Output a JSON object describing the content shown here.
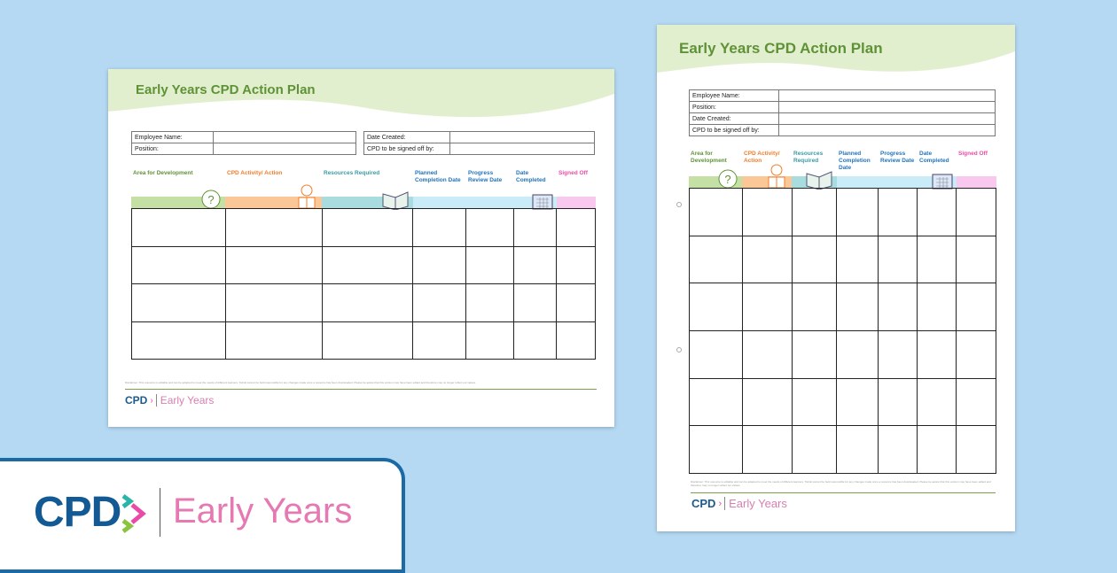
{
  "title": "Early Years CPD Action Plan",
  "info_left": [
    "Employee Name:",
    "Position:"
  ],
  "info_right": [
    "Date Created:",
    "CPD to be signed off by:"
  ],
  "info_portrait": [
    "Employee Name:",
    "Position:",
    "Date Created:",
    "CPD to be signed off by:"
  ],
  "columns": [
    {
      "label": "Area for Development",
      "color": "#5f9237",
      "band": "#c5e0a5",
      "icon": "question-bubble-icon"
    },
    {
      "label": "CPD Activity/ Action",
      "color": "#f07c2a",
      "band": "#fbc796",
      "icon": "person-reading-icon"
    },
    {
      "label": "Resources Required",
      "color": "#3a9aa6",
      "band": "#a8dcdf",
      "icon": "open-book-icon"
    },
    {
      "label": "Planned Completion Date",
      "color": "#1f74bd",
      "band": "#c9ecf8",
      "icon": ""
    },
    {
      "label": "Progress Review Date",
      "color": "#1f74bd",
      "band": "#c9ecf8",
      "icon": ""
    },
    {
      "label": "Date Completed",
      "color": "#1f74bd",
      "band": "#c9ecf8",
      "icon": "calendar-icon"
    },
    {
      "label": "Signed Off",
      "color": "#e94aa8",
      "band": "#f9c8ef",
      "icon": ""
    }
  ],
  "disclaimer": "Disclaimer: This resource is editable and can be adapted to meet the needs of different learners. Twinkl cannot be held responsible for any changes made once a resource has been downloaded. Please be aware that this version may have been edited and therefore may no longer reflect our values.",
  "logo": {
    "cpd": "CPD",
    "early_years": "Early Years"
  },
  "colors": {
    "background": "#b5d9f3",
    "banner_border": "#1b6aa5",
    "brand_blue": "#135a94",
    "brand_pink": "#e679b1",
    "title_green": "#5f9237"
  }
}
